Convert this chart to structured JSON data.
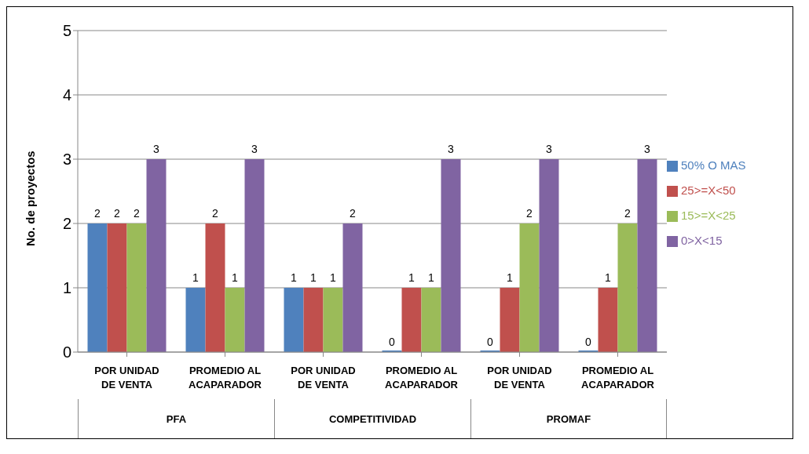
{
  "chart_data": {
    "type": "bar",
    "ylabel": "No. de proyectos",
    "categories": [
      "POR UNIDAD DE VENTA",
      "PROMEDIO AL ACAPARADOR",
      "POR UNIDAD DE VENTA",
      "PROMEDIO AL ACAPARADOR",
      "POR UNIDAD DE VENTA",
      "PROMEDIO AL ACAPARADOR"
    ],
    "series": [
      {
        "name": "50% O MAS",
        "color": "#4f81bd",
        "values": [
          2,
          1,
          1,
          0,
          0,
          0
        ]
      },
      {
        "name": "25>=X<50",
        "color": "#c0504d",
        "values": [
          2,
          2,
          1,
          1,
          1,
          1
        ]
      },
      {
        "name": "15>=X<25",
        "color": "#9bbb59",
        "values": [
          2,
          1,
          1,
          1,
          2,
          2
        ]
      },
      {
        "name": "0>X<15",
        "color": "#8064a2",
        "values": [
          3,
          3,
          2,
          3,
          3,
          3
        ]
      }
    ],
    "annotations": [
      "PFA",
      "COMPETITIVIDAD",
      "PROMAF"
    ],
    "ylim": [
      0,
      5
    ],
    "yticks": [
      0,
      1,
      2,
      3,
      4,
      5
    ],
    "grid": true,
    "legend": "right",
    "data_labels": true
  }
}
